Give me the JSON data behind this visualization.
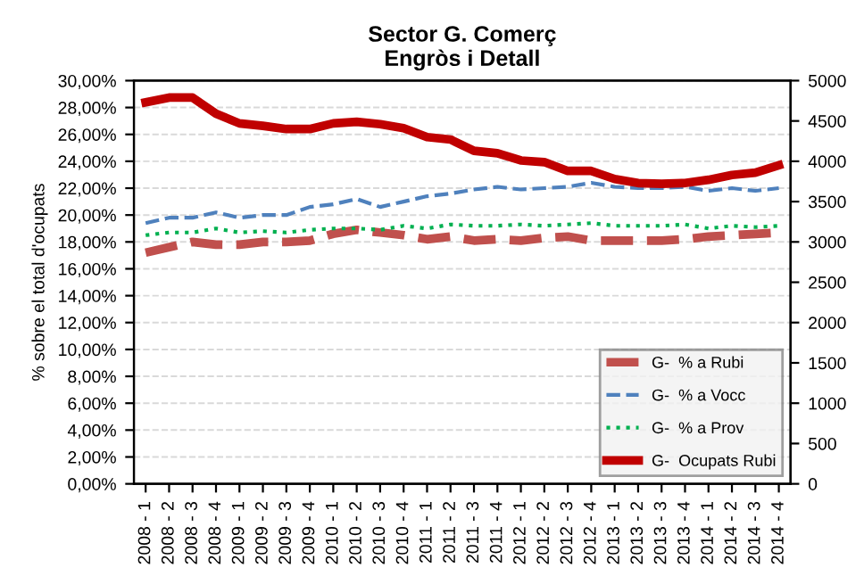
{
  "chart_data": {
    "type": "line",
    "title": "Sector G. Comerç\nEngròs i Detall",
    "ylabel": "% sobre el total d'ocupats",
    "categories": [
      "2008 - 1",
      "2008 - 2",
      "2008 - 3",
      "2008 - 4",
      "2009 - 1",
      "2009 - 2",
      "2009 - 3",
      "2009 - 4",
      "2010 - 1",
      "2010 - 2",
      "2010 - 3",
      "2010 - 4",
      "2011 - 1",
      "2011 - 2",
      "2011 - 3",
      "2011 - 4",
      "2012 - 1",
      "2012 - 2",
      "2012 - 3",
      "2012 - 4",
      "2013 - 1",
      "2013 - 2",
      "2013 - 3",
      "2013 - 4",
      "2014 - 1",
      "2014 - 2",
      "2014 - 3",
      "2014 - 4"
    ],
    "series": [
      {
        "name": "G-  % a Rubi",
        "color": "#c0504d",
        "line_style": "dashed",
        "values": [
          17.2,
          17.6,
          18.0,
          17.8,
          17.8,
          18.0,
          18.0,
          18.1,
          18.6,
          18.9,
          18.7,
          18.5,
          18.2,
          18.4,
          18.1,
          18.2,
          18.1,
          18.3,
          18.4,
          18.1,
          18.1,
          18.1,
          18.1,
          18.2,
          18.4,
          18.5,
          18.6,
          18.7
        ]
      },
      {
        "name": "G-  % a Vocc",
        "color": "#4f81bd",
        "line_style": "dashed",
        "values": [
          19.4,
          19.8,
          19.8,
          20.2,
          19.8,
          20.0,
          20.0,
          20.6,
          20.8,
          21.2,
          20.6,
          21.0,
          21.4,
          21.6,
          21.9,
          22.1,
          21.9,
          22.0,
          22.1,
          22.4,
          22.1,
          22.0,
          22.0,
          22.1,
          21.8,
          22.0,
          21.8,
          22.0
        ]
      },
      {
        "name": "G-  % a Prov",
        "color": "#00b050",
        "line_style": "dotted",
        "values": [
          18.5,
          18.7,
          18.7,
          19.0,
          18.7,
          18.8,
          18.7,
          18.9,
          19.0,
          19.0,
          18.9,
          19.2,
          19.0,
          19.3,
          19.2,
          19.2,
          19.3,
          19.2,
          19.3,
          19.4,
          19.2,
          19.2,
          19.2,
          19.3,
          19.0,
          19.2,
          19.1,
          19.2
        ]
      },
      {
        "name": "G-  Ocupats Rubi",
        "color": "#c00000",
        "line_style": "solid",
        "axis": "y2",
        "values": [
          4730,
          4790,
          4790,
          4590,
          4470,
          4440,
          4400,
          4400,
          4470,
          4490,
          4460,
          4410,
          4300,
          4270,
          4130,
          4100,
          4010,
          3990,
          3880,
          3880,
          3780,
          3730,
          3720,
          3730,
          3770,
          3830,
          3860,
          3950
        ]
      }
    ],
    "ylim": [
      0,
      30
    ],
    "yticks": [
      {
        "value": 0,
        "label": "0,00%"
      },
      {
        "value": 2,
        "label": "2,00%"
      },
      {
        "value": 4,
        "label": "4,00%"
      },
      {
        "value": 6,
        "label": "6,00%"
      },
      {
        "value": 8,
        "label": "8,00%"
      },
      {
        "value": 10,
        "label": "10,00%"
      },
      {
        "value": 12,
        "label": "12,00%"
      },
      {
        "value": 14,
        "label": "14,00%"
      },
      {
        "value": 16,
        "label": "16,00%"
      },
      {
        "value": 18,
        "label": "18,00%"
      },
      {
        "value": 20,
        "label": "20,00%"
      },
      {
        "value": 22,
        "label": "22,00%"
      },
      {
        "value": 24,
        "label": "24,00%"
      },
      {
        "value": 26,
        "label": "26,00%"
      },
      {
        "value": 28,
        "label": "28,00%"
      },
      {
        "value": 30,
        "label": "30,00%"
      }
    ],
    "y2lim": [
      0,
      5000
    ],
    "y2ticks": [
      0,
      500,
      1000,
      1500,
      2000,
      2500,
      3000,
      3500,
      4000,
      4500,
      5000
    ],
    "grid": "y",
    "legend": "bottom right"
  }
}
